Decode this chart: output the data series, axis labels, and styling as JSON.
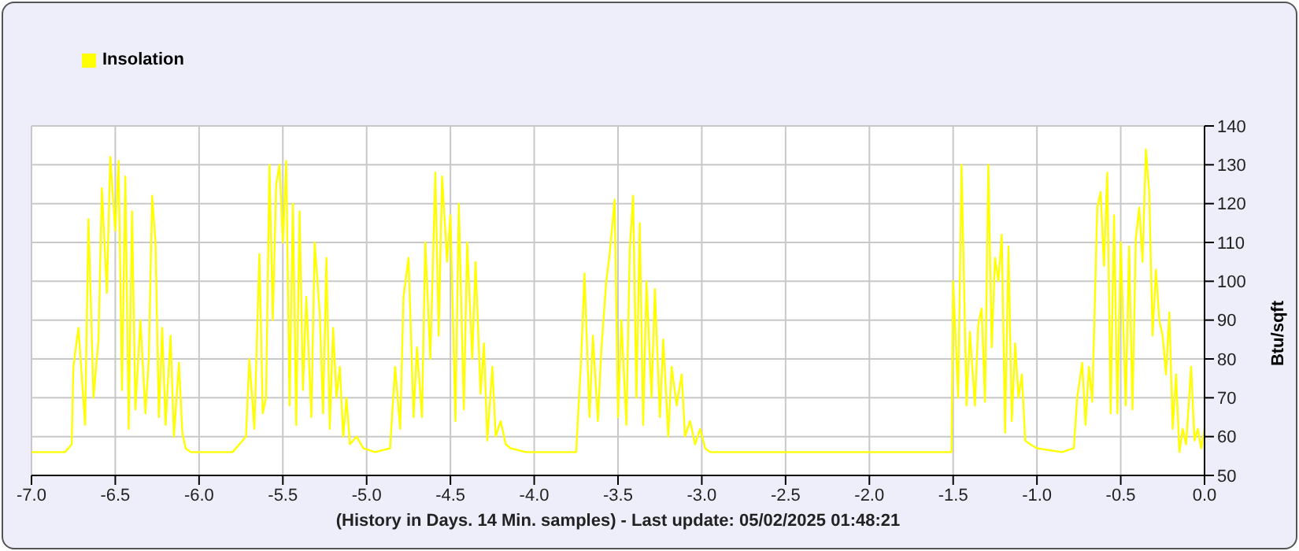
{
  "chart_data": {
    "type": "line",
    "xlabel": "(History in Days. 14 Min. samples) - Last update: 05/02/2025 01:48:21",
    "ylabel": "Btu/sqft",
    "x": [
      -7.0,
      -6.9,
      -6.8,
      -6.76,
      -6.75,
      -6.72,
      -6.68,
      -6.66,
      -6.63,
      -6.6,
      -6.58,
      -6.55,
      -6.53,
      -6.5,
      -6.48,
      -6.46,
      -6.44,
      -6.42,
      -6.4,
      -6.38,
      -6.35,
      -6.32,
      -6.3,
      -6.28,
      -6.26,
      -6.24,
      -6.22,
      -6.2,
      -6.17,
      -6.15,
      -6.12,
      -6.1,
      -6.08,
      -6.05,
      -5.9,
      -5.8,
      -5.72,
      -5.7,
      -5.67,
      -5.64,
      -5.62,
      -5.6,
      -5.58,
      -5.56,
      -5.54,
      -5.52,
      -5.5,
      -5.48,
      -5.46,
      -5.44,
      -5.42,
      -5.4,
      -5.38,
      -5.36,
      -5.33,
      -5.31,
      -5.28,
      -5.26,
      -5.24,
      -5.22,
      -5.2,
      -5.18,
      -5.16,
      -5.14,
      -5.12,
      -5.1,
      -5.06,
      -5.02,
      -4.95,
      -4.86,
      -4.83,
      -4.8,
      -4.78,
      -4.75,
      -4.72,
      -4.7,
      -4.67,
      -4.65,
      -4.62,
      -4.59,
      -4.57,
      -4.55,
      -4.52,
      -4.5,
      -4.47,
      -4.45,
      -4.42,
      -4.4,
      -4.37,
      -4.35,
      -4.32,
      -4.3,
      -4.28,
      -4.25,
      -4.23,
      -4.2,
      -4.17,
      -4.14,
      -4.05,
      -3.95,
      -3.75,
      -3.72,
      -3.7,
      -3.67,
      -3.65,
      -3.62,
      -3.6,
      -3.57,
      -3.55,
      -3.52,
      -3.5,
      -3.48,
      -3.45,
      -3.43,
      -3.41,
      -3.39,
      -3.37,
      -3.35,
      -3.33,
      -3.3,
      -3.28,
      -3.25,
      -3.23,
      -3.2,
      -3.18,
      -3.15,
      -3.12,
      -3.1,
      -3.07,
      -3.04,
      -3.01,
      -2.98,
      -2.95,
      -1.51,
      -1.5,
      -1.47,
      -1.45,
      -1.42,
      -1.4,
      -1.37,
      -1.35,
      -1.33,
      -1.31,
      -1.29,
      -1.27,
      -1.25,
      -1.23,
      -1.21,
      -1.19,
      -1.17,
      -1.15,
      -1.13,
      -1.11,
      -1.09,
      -1.07,
      -1.04,
      -1.0,
      -0.85,
      -0.78,
      -0.76,
      -0.73,
      -0.71,
      -0.69,
      -0.67,
      -0.64,
      -0.62,
      -0.6,
      -0.58,
      -0.56,
      -0.54,
      -0.52,
      -0.5,
      -0.47,
      -0.45,
      -0.43,
      -0.41,
      -0.39,
      -0.37,
      -0.35,
      -0.33,
      -0.31,
      -0.29,
      -0.27,
      -0.25,
      -0.23,
      -0.21,
      -0.19,
      -0.17,
      -0.15,
      -0.13,
      -0.11,
      -0.08,
      -0.06,
      -0.04,
      -0.02,
      0.0
    ],
    "series": [
      {
        "name": "Insolation",
        "color": "#ffff00",
        "values": [
          56,
          56,
          56,
          58,
          78,
          88,
          63,
          116,
          70,
          85,
          124,
          97,
          132,
          113,
          131,
          72,
          127,
          62,
          118,
          67,
          90,
          66,
          80,
          122,
          110,
          65,
          88,
          63,
          86,
          60,
          79,
          61,
          57,
          56,
          56,
          56,
          60,
          80,
          62,
          107,
          66,
          70,
          130,
          90,
          125,
          130,
          110,
          131,
          68,
          120,
          63,
          118,
          72,
          96,
          65,
          110,
          92,
          66,
          106,
          62,
          88,
          70,
          78,
          60,
          70,
          58,
          60,
          57,
          56,
          57,
          78,
          62,
          96,
          106,
          65,
          83,
          65,
          110,
          80,
          128,
          86,
          127,
          105,
          117,
          64,
          120,
          67,
          110,
          80,
          105,
          71,
          84,
          59,
          78,
          60,
          64,
          58,
          57,
          56,
          56,
          56,
          80,
          102,
          65,
          86,
          64,
          82,
          100,
          107,
          121,
          65,
          90,
          63,
          108,
          122,
          70,
          115,
          63,
          100,
          70,
          98,
          65,
          85,
          60,
          78,
          68,
          76,
          60,
          64,
          58,
          62,
          57,
          56,
          56,
          100,
          70,
          130,
          68,
          87,
          68,
          89,
          93,
          69,
          130,
          83,
          106,
          100,
          112,
          61,
          109,
          64,
          84,
          70,
          76,
          59,
          58,
          57,
          56,
          57,
          70,
          79,
          63,
          78,
          69,
          119,
          123,
          104,
          128,
          66,
          117,
          66,
          110,
          68,
          109,
          67,
          111,
          119,
          105,
          134,
          123,
          86,
          103,
          90,
          86,
          76,
          92,
          62,
          76,
          56,
          62,
          58,
          78,
          59,
          62,
          57,
          62
        ]
      }
    ],
    "xlim": [
      -7.0,
      0.0
    ],
    "xticks": [
      {
        "value": -7,
        "label": "-7.0"
      },
      {
        "value": -6.5,
        "label": "-6.5"
      },
      {
        "value": -6,
        "label": "-6.0"
      },
      {
        "value": -5.5,
        "label": "-5.5"
      },
      {
        "value": -5,
        "label": "-5.0"
      },
      {
        "value": -4.5,
        "label": "-4.5"
      },
      {
        "value": -4,
        "label": "-4.0"
      },
      {
        "value": -3.5,
        "label": "-3.5"
      },
      {
        "value": -3,
        "label": "-3.0"
      },
      {
        "value": -2.5,
        "label": "-2.5"
      },
      {
        "value": -2,
        "label": "-2.0"
      },
      {
        "value": -1.5,
        "label": "-1.5"
      },
      {
        "value": -1,
        "label": "-1.0"
      },
      {
        "value": -0.5,
        "label": "-0.5"
      },
      {
        "value": 0,
        "label": "0.0"
      }
    ],
    "ylim": [
      50,
      140
    ],
    "yticks": [
      50,
      60,
      70,
      80,
      90,
      100,
      110,
      120,
      130,
      140
    ],
    "grid": true,
    "legend": "top left"
  }
}
